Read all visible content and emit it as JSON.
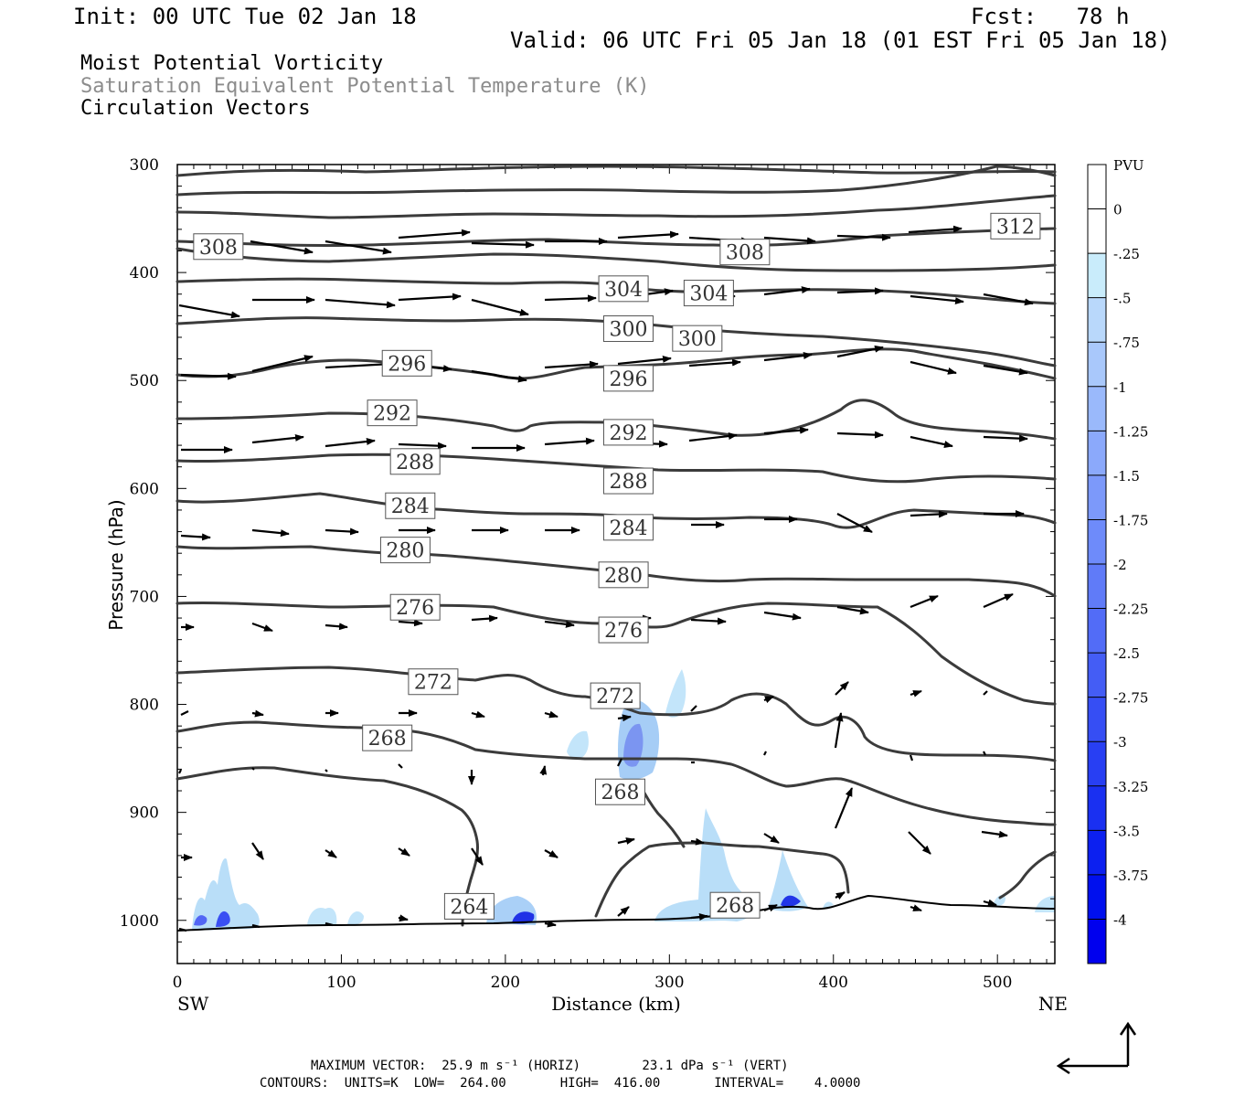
{
  "header": {
    "init": "Init: 00 UTC Tue 02 Jan 18",
    "fcst": "Fcst:   78 h",
    "valid": "Valid: 06 UTC Fri 05 Jan 18 (01 EST Fri 05 Jan 18)"
  },
  "titles": {
    "line1": "Moist Potential Vorticity",
    "line2": "Saturation Equivalent Potential Temperature (K)",
    "line3": "Circulation Vectors"
  },
  "colorbar": {
    "unit": "PVU",
    "labels": [
      "0",
      "-.25",
      "-.5",
      "-.75",
      "-1",
      "-1.25",
      "-1.5",
      "-1.75",
      "-2",
      "-2.25",
      "-2.5",
      "-2.75",
      "-3",
      "-3.25",
      "-3.5",
      "-3.75",
      "-4"
    ],
    "colors": [
      "#ffffff",
      "#ffffff",
      "#c9ecfb",
      "#b9d8fb",
      "#a9c8fb",
      "#9ab9fb",
      "#8ba9fb",
      "#7c99fa",
      "#6e8bfa",
      "#607bf8",
      "#526cf7",
      "#445df5",
      "#364ef4",
      "#283ff3",
      "#1a30f1",
      "#0c20f0",
      "#0010ee",
      "#0000ee"
    ]
  },
  "footer": {
    "line1": "MAXIMUM VECTOR:  25.9 m s⁻¹ (HORIZ)        23.1 dPa s⁻¹ (VERT)",
    "line2": "CONTOURS:  UNITS=K  LOW=  264.00       HIGH=  416.00       INTERVAL=    4.0000"
  },
  "chart_data": {
    "type": "contour",
    "xlabel": "Distance (km)",
    "ylabel": "Pressure (hPa)",
    "xlim": [
      0,
      535
    ],
    "ylim": [
      1040,
      300
    ],
    "x_ticks": [
      0,
      100,
      200,
      300,
      400,
      500
    ],
    "y_ticks": [
      300,
      400,
      500,
      600,
      700,
      800,
      900,
      1000
    ],
    "x_end_labels": {
      "left": "SW",
      "right": "NE"
    },
    "contour_labels": [
      {
        "value": "308",
        "x": 25,
        "p": 376
      },
      {
        "value": "312",
        "x": 511,
        "p": 357
      },
      {
        "value": "308",
        "x": 346,
        "p": 381
      },
      {
        "value": "304",
        "x": 272,
        "p": 415
      },
      {
        "value": "304",
        "x": 324,
        "p": 419
      },
      {
        "value": "300",
        "x": 275,
        "p": 452
      },
      {
        "value": "300",
        "x": 317,
        "p": 461
      },
      {
        "value": "296",
        "x": 140,
        "p": 484
      },
      {
        "value": "296",
        "x": 275,
        "p": 498
      },
      {
        "value": "292",
        "x": 131,
        "p": 530
      },
      {
        "value": "292",
        "x": 275,
        "p": 548
      },
      {
        "value": "288",
        "x": 145,
        "p": 575
      },
      {
        "value": "288",
        "x": 275,
        "p": 593
      },
      {
        "value": "284",
        "x": 142,
        "p": 616
      },
      {
        "value": "284",
        "x": 275,
        "p": 636
      },
      {
        "value": "280",
        "x": 139,
        "p": 657
      },
      {
        "value": "280",
        "x": 272,
        "p": 680
      },
      {
        "value": "276",
        "x": 145,
        "p": 710
      },
      {
        "value": "276",
        "x": 272,
        "p": 731
      },
      {
        "value": "272",
        "x": 156,
        "p": 779
      },
      {
        "value": "272",
        "x": 267,
        "p": 792
      },
      {
        "value": "268",
        "x": 128,
        "p": 831
      },
      {
        "value": "268",
        "x": 270,
        "p": 881
      },
      {
        "value": "264",
        "x": 178,
        "p": 987
      },
      {
        "value": "268",
        "x": 340,
        "p": 986
      }
    ]
  }
}
